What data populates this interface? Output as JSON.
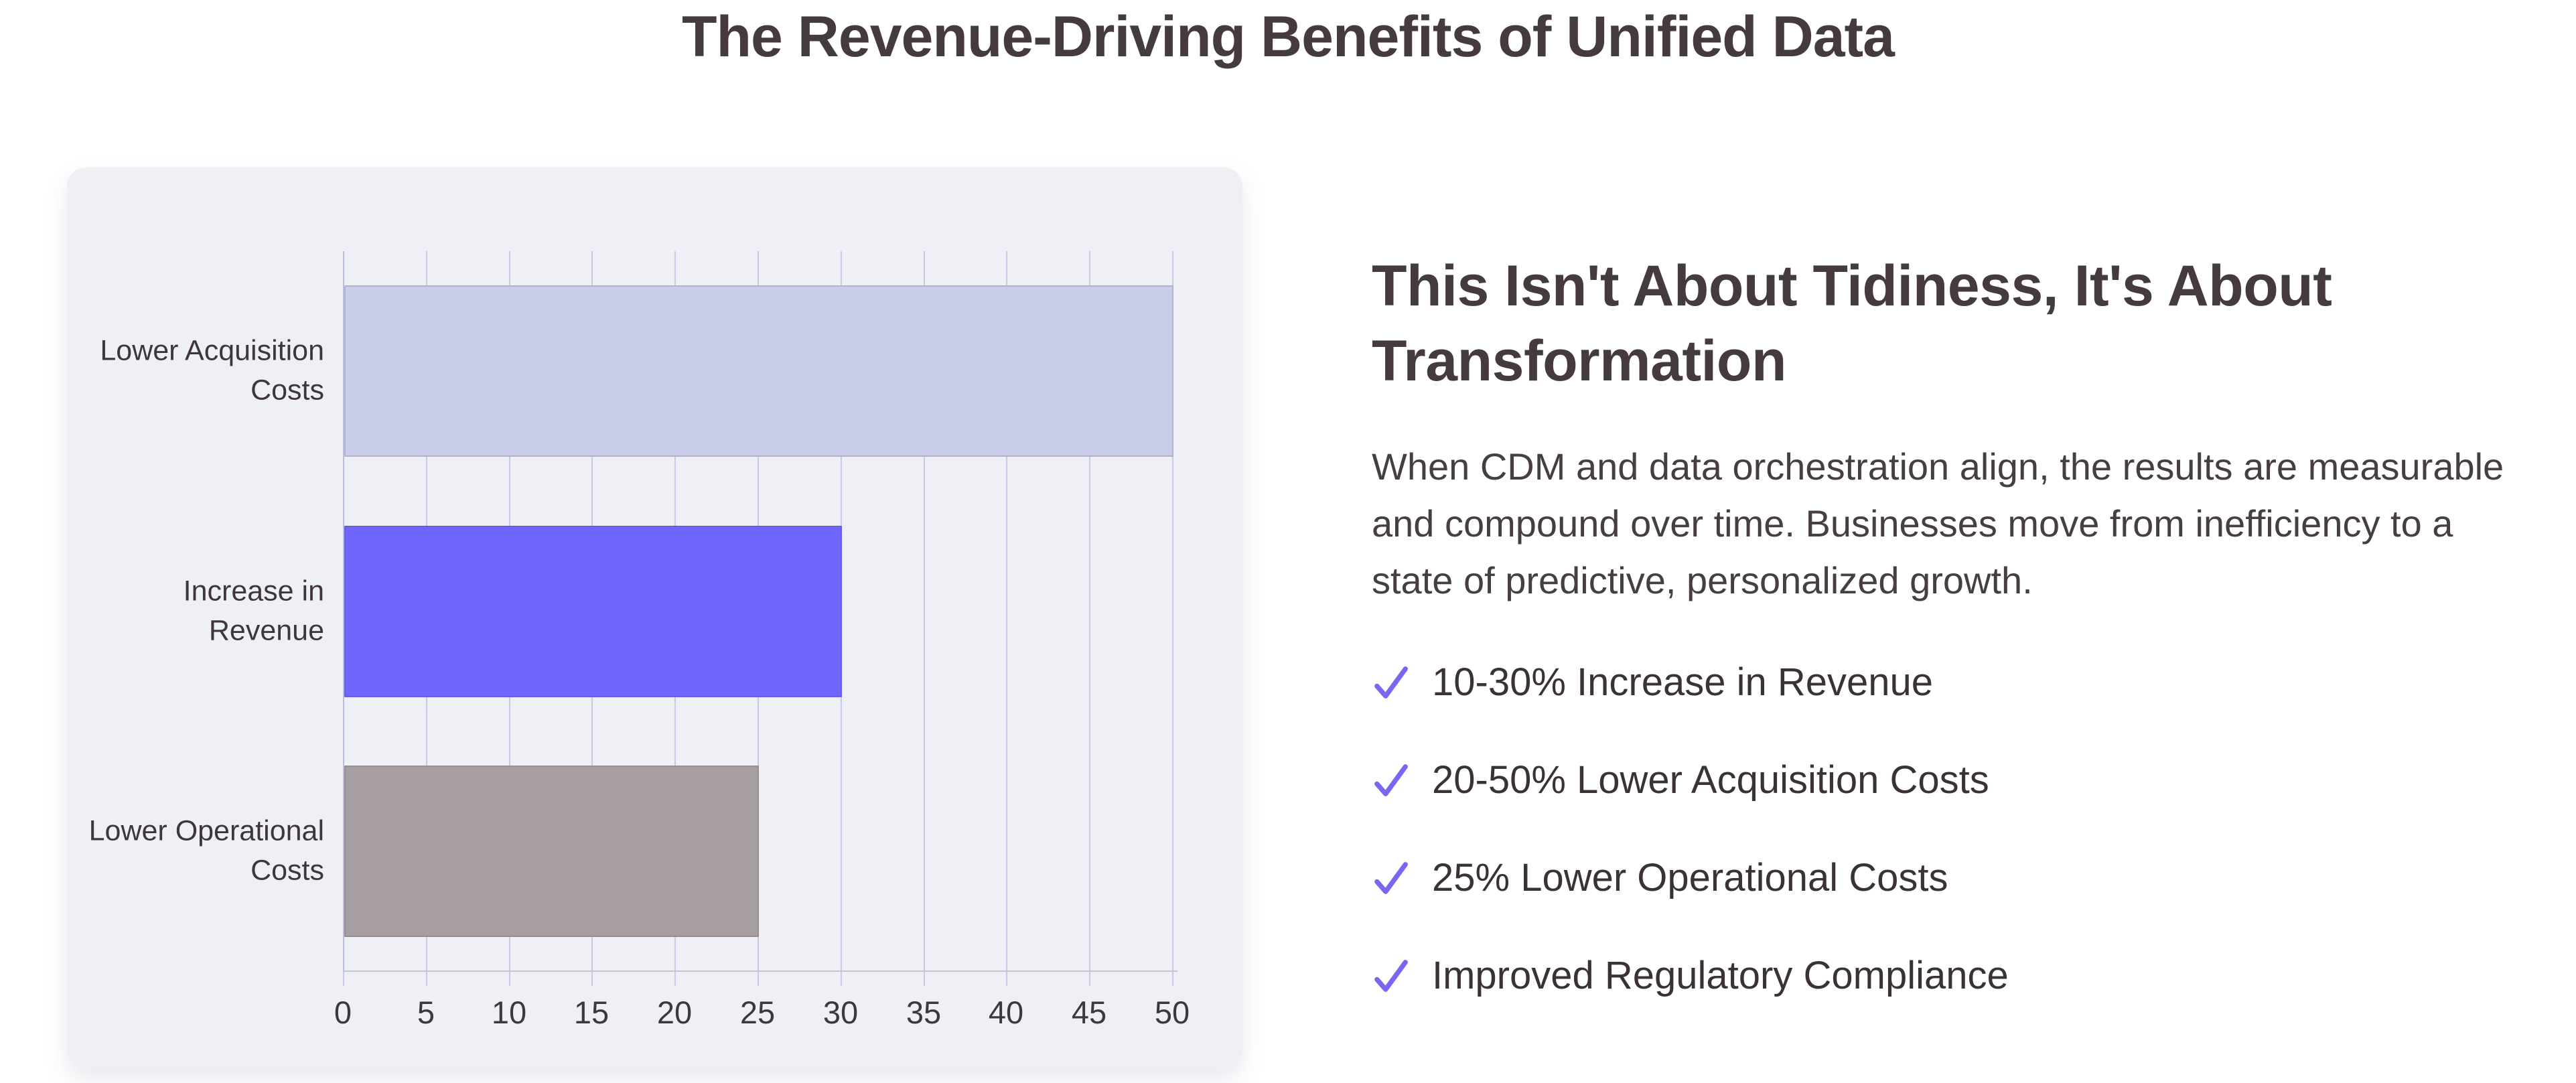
{
  "page": {
    "title": "The Revenue-Driving Benefits of Unified Data",
    "background": "#ffffff"
  },
  "chart_data": {
    "type": "bar",
    "orientation": "horizontal",
    "title": "",
    "xlabel": "",
    "ylabel": "",
    "categories": [
      "Lower Acquisition\nCosts",
      "Increase in\nRevenue",
      "Lower Operational\nCosts"
    ],
    "values": [
      50,
      30,
      25
    ],
    "bar_colors": [
      "#c9cde9",
      "#7166fb",
      "#a79ea1"
    ],
    "xlim": [
      0,
      50
    ],
    "x_ticks": [
      0,
      5,
      10,
      15,
      20,
      25,
      30,
      35,
      40,
      45,
      50
    ],
    "grid": "vertical",
    "legend": "none",
    "panel_bg": "#eff0f6"
  },
  "content": {
    "heading": "This Isn't About Tidiness, It's About\nTransformation",
    "paragraph": "When CDM and data orchestration align, the results are measurable\nand compound over time. Businesses move from inefficiency to a\nstate of predictive, personalized growth.",
    "check_color": "#7767f2",
    "checklist": [
      {
        "label": "10-30% Increase in Revenue"
      },
      {
        "label": "20-50% Lower Acquisition Costs"
      },
      {
        "label": "25% Lower Operational Costs"
      },
      {
        "label": "Improved Regulatory Compliance"
      }
    ]
  },
  "colors": {
    "heading_text": "#453b3f",
    "body_text": "#473e44",
    "gridline": "#c9c9e6",
    "axis_line": "#c6c6ce",
    "card_background": "#eff0f6"
  }
}
